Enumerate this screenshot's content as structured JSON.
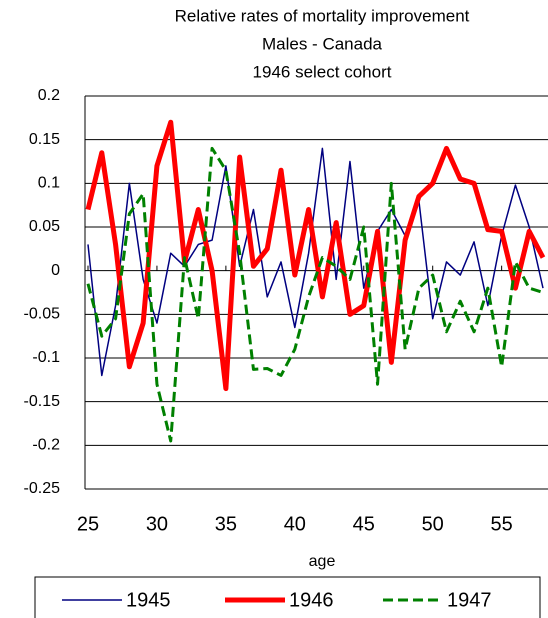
{
  "chart_data": {
    "type": "line",
    "title": [
      "Relative rates of mortality improvement",
      "Males - Canada",
      "1946 select cohort"
    ],
    "x_label": "age",
    "x": [
      25,
      26,
      27,
      28,
      29,
      30,
      31,
      32,
      33,
      34,
      35,
      36,
      37,
      38,
      39,
      40,
      41,
      42,
      43,
      44,
      45,
      46,
      47,
      48,
      49,
      50,
      51,
      52,
      53,
      54,
      55,
      56,
      57,
      58
    ],
    "xlim": [
      25,
      58
    ],
    "xticks": [
      25,
      30,
      35,
      40,
      45,
      50,
      55
    ],
    "ylim": [
      -0.25,
      0.2
    ],
    "yticks": [
      0.2,
      0.15,
      0.1,
      0.05,
      0,
      -0.05,
      -0.1,
      -0.15,
      -0.2,
      -0.25
    ],
    "grid": true,
    "legend": "bottom",
    "series": [
      {
        "name": "1945",
        "color": "#000080",
        "style": "solid",
        "width": 1.5,
        "values": [
          0.03,
          -0.12,
          -0.04,
          0.1,
          -0.01,
          -0.06,
          0.02,
          0.005,
          0.03,
          0.035,
          0.12,
          0.005,
          0.07,
          -0.03,
          0.01,
          -0.065,
          0.02,
          0.14,
          -0.01,
          0.125,
          -0.02,
          0.045,
          0.07,
          0.04,
          0.08,
          -0.055,
          0.01,
          -0.005,
          0.033,
          -0.04,
          0.04,
          0.098,
          0.05,
          -0.02
        ]
      },
      {
        "name": "1946",
        "color": "#ff0000",
        "style": "solid",
        "width": 5,
        "values": [
          0.07,
          0.135,
          0.03,
          -0.11,
          -0.06,
          0.12,
          0.17,
          0.01,
          0.07,
          0.0,
          -0.135,
          0.13,
          0.005,
          0.025,
          0.115,
          -0.005,
          0.07,
          -0.03,
          0.055,
          -0.05,
          -0.04,
          0.045,
          -0.105,
          0.035,
          0.085,
          0.1,
          0.14,
          0.105,
          0.1,
          0.047,
          0.045,
          -0.02,
          0.045,
          0.015
        ]
      },
      {
        "name": "1947",
        "color": "#008000",
        "style": "dashed",
        "width": 3,
        "values": [
          -0.015,
          -0.075,
          -0.055,
          0.065,
          0.088,
          -0.13,
          -0.195,
          0.015,
          -0.055,
          0.14,
          0.115,
          0.02,
          -0.113,
          -0.112,
          -0.12,
          -0.09,
          -0.03,
          0.015,
          0.005,
          -0.01,
          0.05,
          -0.13,
          0.1,
          -0.09,
          -0.02,
          -0.005,
          -0.07,
          -0.035,
          -0.07,
          -0.02,
          -0.11,
          0.01,
          -0.02,
          -0.025
        ]
      }
    ]
  }
}
